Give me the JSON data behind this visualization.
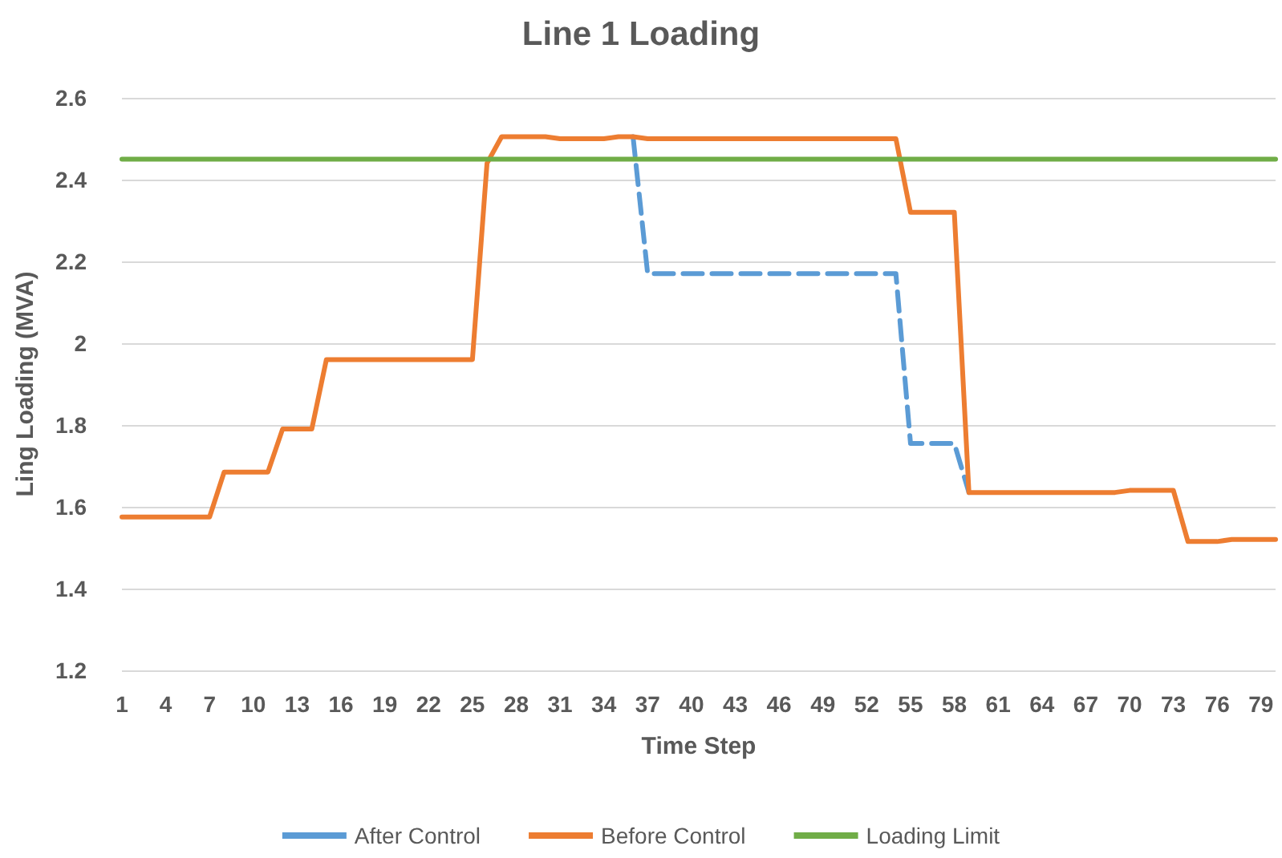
{
  "chart_data": {
    "type": "line",
    "title": "Line 1 Loading",
    "xlabel": "Time Step",
    "ylabel": "Ling Loading (MVA)",
    "categories": [
      "1",
      null,
      null,
      "4",
      null,
      null,
      "7",
      null,
      null,
      "10",
      null,
      null,
      "13",
      null,
      null,
      "16",
      null,
      null,
      "19",
      null,
      null,
      "22",
      null,
      null,
      "25",
      null,
      null,
      "28",
      null,
      null,
      "31",
      null,
      null,
      "34",
      null,
      null,
      "37",
      null,
      null,
      "40",
      null,
      null,
      "43",
      null,
      null,
      "46",
      null,
      null,
      "49",
      null,
      null,
      "52",
      null,
      null,
      "55",
      null,
      null,
      "58",
      null,
      null,
      "61",
      null,
      null,
      "64",
      null,
      null,
      "67",
      null,
      null,
      "70",
      null,
      null,
      "73",
      null,
      null,
      "76",
      null,
      null,
      "79",
      null
    ],
    "series": [
      {
        "name": "After Control",
        "color": "#5b9bd5",
        "line_style": "dashed",
        "values": [
          null,
          null,
          null,
          null,
          null,
          null,
          null,
          null,
          null,
          null,
          null,
          null,
          null,
          null,
          null,
          null,
          null,
          null,
          null,
          null,
          null,
          null,
          null,
          null,
          null,
          null,
          null,
          null,
          null,
          null,
          null,
          null,
          null,
          null,
          null,
          2.505,
          2.17,
          2.17,
          2.17,
          2.17,
          2.17,
          2.17,
          2.17,
          2.17,
          2.17,
          2.17,
          2.17,
          2.17,
          2.17,
          2.17,
          2.17,
          2.17,
          2.17,
          2.17,
          1.755,
          1.755,
          1.755,
          1.755,
          1.635,
          null,
          null,
          null,
          null,
          null,
          null,
          null,
          null,
          null,
          null,
          null,
          null,
          null,
          null,
          null,
          null,
          null,
          null,
          null,
          null,
          null
        ]
      },
      {
        "name": "Before Control",
        "color": "#ed7d31",
        "line_style": "solid",
        "values": [
          1.575,
          1.575,
          1.575,
          1.575,
          1.575,
          1.575,
          1.575,
          1.685,
          1.685,
          1.685,
          1.685,
          1.79,
          1.79,
          1.79,
          1.96,
          1.96,
          1.96,
          1.96,
          1.96,
          1.96,
          1.96,
          1.96,
          1.96,
          1.96,
          1.96,
          2.44,
          2.505,
          2.505,
          2.505,
          2.505,
          2.5,
          2.5,
          2.5,
          2.5,
          2.505,
          2.505,
          2.5,
          2.5,
          2.5,
          2.5,
          2.5,
          2.5,
          2.5,
          2.5,
          2.5,
          2.5,
          2.5,
          2.5,
          2.5,
          2.5,
          2.5,
          2.5,
          2.5,
          2.5,
          2.32,
          2.32,
          2.32,
          2.32,
          1.635,
          1.635,
          1.635,
          1.635,
          1.635,
          1.635,
          1.635,
          1.635,
          1.635,
          1.635,
          1.635,
          1.64,
          1.64,
          1.64,
          1.64,
          1.515,
          1.515,
          1.515,
          1.52,
          1.52,
          1.52,
          1.52
        ]
      },
      {
        "name": "Loading Limit",
        "color": "#70ad47",
        "line_style": "solid",
        "values": [
          2.45,
          2.45,
          2.45,
          2.45,
          2.45,
          2.45,
          2.45,
          2.45,
          2.45,
          2.45,
          2.45,
          2.45,
          2.45,
          2.45,
          2.45,
          2.45,
          2.45,
          2.45,
          2.45,
          2.45,
          2.45,
          2.45,
          2.45,
          2.45,
          2.45,
          2.45,
          2.45,
          2.45,
          2.45,
          2.45,
          2.45,
          2.45,
          2.45,
          2.45,
          2.45,
          2.45,
          2.45,
          2.45,
          2.45,
          2.45,
          2.45,
          2.45,
          2.45,
          2.45,
          2.45,
          2.45,
          2.45,
          2.45,
          2.45,
          2.45,
          2.45,
          2.45,
          2.45,
          2.45,
          2.45,
          2.45,
          2.45,
          2.45,
          2.45,
          2.45,
          2.45,
          2.45,
          2.45,
          2.45,
          2.45,
          2.45,
          2.45,
          2.45,
          2.45,
          2.45,
          2.45,
          2.45,
          2.45,
          2.45,
          2.45,
          2.45,
          2.45,
          2.45,
          2.45,
          2.45
        ]
      }
    ],
    "ylim": [
      1.2,
      2.6
    ],
    "yticks": [
      1.2,
      1.4,
      1.6,
      1.8,
      2,
      2.2,
      2.4,
      2.6
    ],
    "grid": "y",
    "legend": "bottom",
    "marker": "none"
  }
}
